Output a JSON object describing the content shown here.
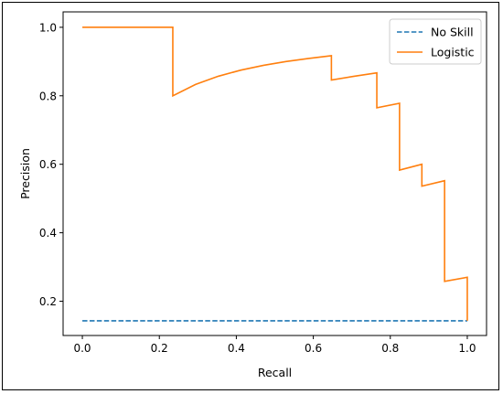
{
  "chart_data": {
    "type": "line",
    "xlabel": "Recall",
    "ylabel": "Precision",
    "xlim": [
      -0.05,
      1.05
    ],
    "ylim": [
      0.1,
      1.045
    ],
    "xticks": [
      0.0,
      0.2,
      0.4,
      0.6,
      0.8,
      1.0
    ],
    "xtick_labels": [
      "0.0",
      "0.2",
      "0.4",
      "0.6",
      "0.8",
      "1.0"
    ],
    "yticks": [
      0.2,
      0.4,
      0.6,
      0.8,
      1.0
    ],
    "ytick_labels": [
      "0.2",
      "0.4",
      "0.6",
      "0.8",
      "1.0"
    ],
    "grid": false,
    "legend_position": "top-right",
    "series": [
      {
        "name": "No Skill",
        "style": "dashed",
        "color": "#1f77b4",
        "x": [
          0.0,
          1.0
        ],
        "y": [
          0.143,
          0.143
        ]
      },
      {
        "name": "Logistic",
        "style": "solid",
        "color": "#ff7f0e",
        "x": [
          0.0,
          0.235,
          0.235,
          0.294,
          0.353,
          0.412,
          0.471,
          0.529,
          0.588,
          0.647,
          0.647,
          0.706,
          0.765,
          0.765,
          0.824,
          0.824,
          0.882,
          0.882,
          0.941,
          0.941,
          1.0,
          1.0
        ],
        "y": [
          1.0,
          1.0,
          0.8,
          0.833,
          0.857,
          0.875,
          0.889,
          0.9,
          0.909,
          0.917,
          0.846,
          0.857,
          0.867,
          0.765,
          0.778,
          0.583,
          0.6,
          0.536,
          0.552,
          0.258,
          0.27,
          0.143
        ]
      }
    ]
  }
}
